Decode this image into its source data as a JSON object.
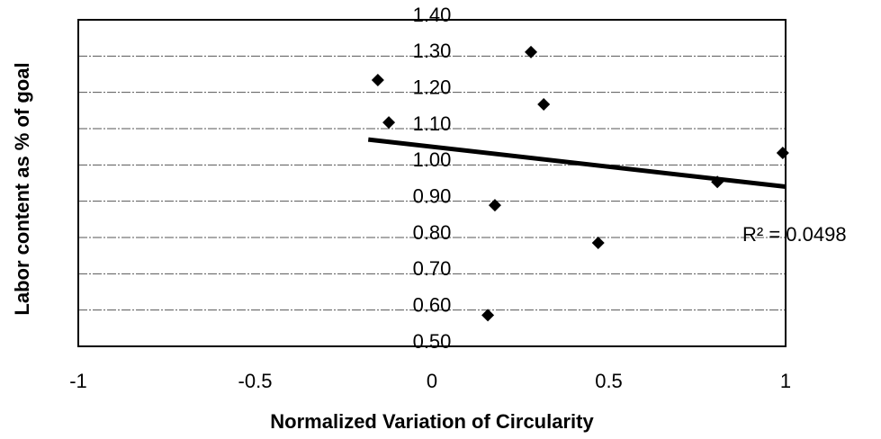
{
  "chart_data": {
    "type": "scatter",
    "x_label": "Normalized Variation of Circularity",
    "y_label": "Labor content as % of goal",
    "series": [
      {
        "name": "Labor content",
        "color": "#000000",
        "x": [
          -0.153,
          -0.122,
          0.28,
          0.316,
          0.178,
          0.158,
          0.47,
          0.807,
          0.992
        ],
        "values": [
          1.234,
          1.117,
          1.311,
          1.167,
          0.889,
          0.586,
          0.785,
          0.953,
          1.033
        ]
      }
    ],
    "trendline": {
      "x": [
        -0.18,
        1
      ],
      "values": [
        1.07,
        0.94
      ],
      "color": "#000000"
    },
    "annotation": "R² = 0.0498",
    "xlim": [
      -1,
      1
    ],
    "xticks": [
      -1,
      -0.5,
      0,
      0.5,
      1
    ],
    "ylim": [
      0.5,
      1.4
    ],
    "yticks": [
      {
        "value": 0.5,
        "label": "0.50"
      },
      {
        "value": 0.6,
        "label": "0.60"
      },
      {
        "value": 0.7,
        "label": "0.70"
      },
      {
        "value": 0.8,
        "label": "0.80"
      },
      {
        "value": 0.9,
        "label": "0.90"
      },
      {
        "value": 1.0,
        "label": "1.00"
      },
      {
        "value": 1.1,
        "label": "1.10"
      },
      {
        "value": 1.2,
        "label": "1.20"
      },
      {
        "value": 1.3,
        "label": "1.30"
      },
      {
        "value": 1.4,
        "label": "1.40"
      }
    ],
    "grid": true
  }
}
